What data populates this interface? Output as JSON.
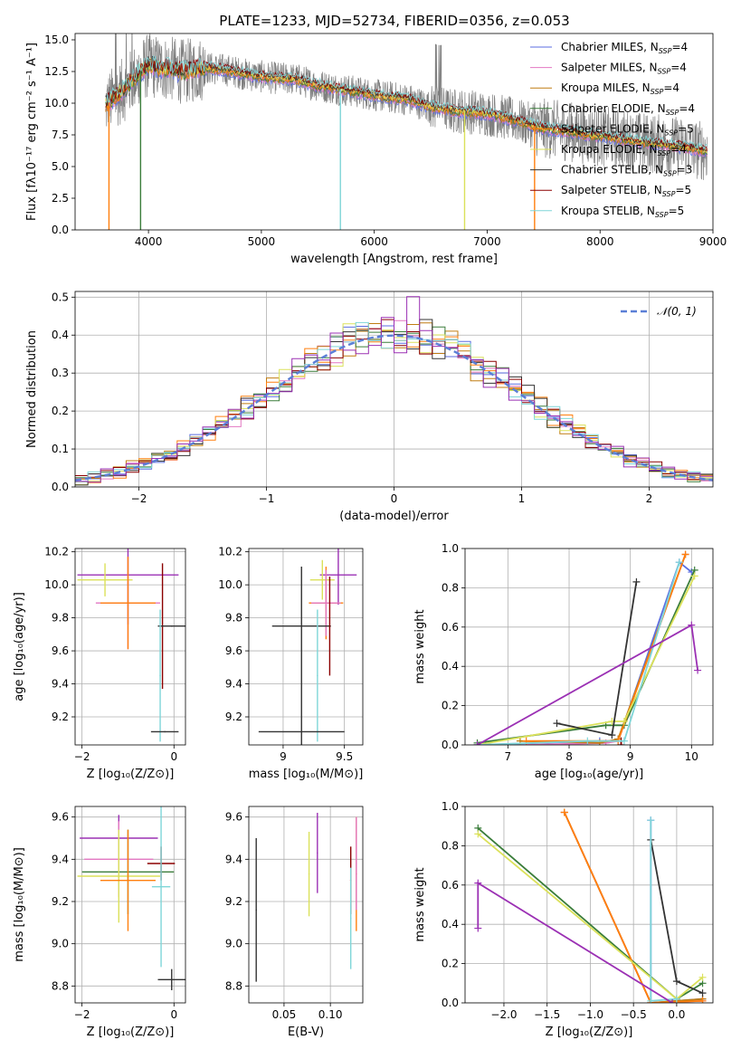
{
  "figure": {
    "title": "PLATE=1233, MJD=52734, FIBERID=0356, z=0.053",
    "series_colors": [
      "#5b6ee1",
      "#e377c2",
      "#c07d12",
      "#3a7d3a",
      "#ff7f0e",
      "#dbe15a",
      "#333333",
      "#8b0000",
      "#7fd6d8"
    ],
    "mean_color": "#7f7f7f",
    "gaussian_color": "#5b7fd6",
    "purple": "#9b30b4"
  },
  "chart_data": [
    {
      "id": "spectrum",
      "type": "line",
      "xlabel": "wavelength [Angstrom, rest frame]",
      "ylabel": "Flux [fλ10⁻¹⁷ erg cm⁻² s⁻¹ A⁻¹]",
      "xlim": [
        3350,
        9000
      ],
      "ylim": [
        0,
        15.5
      ],
      "xticks": [
        4000,
        5000,
        6000,
        7000,
        8000,
        9000
      ],
      "yticks": [
        0.0,
        2.5,
        5.0,
        7.5,
        10.0,
        12.5,
        15.0
      ],
      "grid": false,
      "legend_position": "top-right",
      "series": [
        {
          "name": "Chabrier MILES, N",
          "sub": "SSP",
          "suffix": "=4"
        },
        {
          "name": "Salpeter MILES, N",
          "sub": "SSP",
          "suffix": "=4"
        },
        {
          "name": "Kroupa MILES, N",
          "sub": "SSP",
          "suffix": "=4"
        },
        {
          "name": "Chabrier ELODIE, N",
          "sub": "SSP",
          "suffix": "=4"
        },
        {
          "name": "Salpeter ELODIE, N",
          "sub": "SSP",
          "suffix": "=5"
        },
        {
          "name": "Kroupa ELODIE, N",
          "sub": "SSP",
          "suffix": "=4"
        },
        {
          "name": "Chabrier STELIB, N",
          "sub": "SSP",
          "suffix": "=3"
        },
        {
          "name": "Salpeter STELIB, N",
          "sub": "SSP",
          "suffix": "=5"
        },
        {
          "name": "Kroupa STELIB, N",
          "sub": "SSP",
          "suffix": "=5"
        }
      ],
      "continuum_x": [
        3620,
        3700,
        3800,
        3900,
        4000,
        4100,
        4200,
        4300,
        4400,
        4500,
        4700,
        4900,
        5100,
        5300,
        5500,
        5700,
        5900,
        6100,
        6300,
        6500,
        6700,
        6900,
        7100,
        7300,
        7500,
        7700,
        7900,
        8100,
        8300,
        8500,
        8700,
        8950
      ],
      "continuum_y": [
        9.8,
        10.5,
        11.2,
        12.3,
        13.0,
        12.8,
        12.7,
        12.5,
        12.6,
        12.8,
        12.6,
        12.2,
        12.0,
        11.9,
        11.4,
        11.1,
        10.8,
        10.5,
        10.3,
        9.7,
        9.4,
        9.3,
        9.0,
        8.5,
        8.0,
        7.8,
        7.5,
        7.3,
        7.0,
        6.8,
        6.6,
        6.2
      ],
      "dips": [
        {
          "x": 3650,
          "series": 4
        },
        {
          "x": 3930,
          "series": 3
        },
        {
          "x": 5700,
          "series": 8
        },
        {
          "x": 6800,
          "series": 5
        },
        {
          "x": 7420,
          "series": 4
        }
      ]
    },
    {
      "id": "residual_hist",
      "type": "line",
      "xlabel": "(data-model)/error",
      "ylabel": "Normed distribution",
      "xlim": [
        -2.5,
        2.5
      ],
      "ylim": [
        0,
        0.515
      ],
      "xticks": [
        -2,
        -1,
        0,
        1,
        2
      ],
      "xtick_labels": [
        "−2",
        "−1",
        "0",
        "1",
        "2"
      ],
      "yticks": [
        0.0,
        0.1,
        0.2,
        0.3,
        0.4,
        0.5
      ],
      "grid": true,
      "legend_position": "top-right",
      "legend": {
        "label": "𝒩(0, 1)"
      },
      "bin_start": -2.5,
      "bin_width": 0.1
    },
    {
      "id": "age_vs_Z",
      "type": "scatter",
      "xlabel": "Z [log₁₀(Z/Z⊙)]",
      "ylabel": "age  [log₁₀(age/yr)]",
      "xlim": [
        -2.15,
        0.25
      ],
      "ylim": [
        9.03,
        10.22
      ],
      "xticks": [
        -2,
        0
      ],
      "xtick_labels": [
        "−2",
        "0"
      ],
      "yticks": [
        9.2,
        9.4,
        9.6,
        9.8,
        10.0,
        10.2
      ],
      "grid": true,
      "points": [
        {
          "x": -1.0,
          "y": 10.06,
          "xerr": 1.1,
          "yerr": 0.3,
          "c": 9
        },
        {
          "x": -1.5,
          "y": 10.03,
          "xerr": 0.6,
          "yerr": 0.1,
          "c": 5
        },
        {
          "x": -1.0,
          "y": 9.89,
          "xerr": 0.7,
          "yerr": 0.28,
          "c": 1
        },
        {
          "x": -1.0,
          "y": 9.89,
          "xerr": 0.6,
          "yerr": 0.28,
          "c": 4
        },
        {
          "x": -0.25,
          "y": 9.75,
          "xerr": 0.0,
          "yerr": 0.38,
          "c": 7
        },
        {
          "x": -0.05,
          "y": 9.75,
          "xerr": 0.3,
          "yerr": 0.0,
          "c": 6
        },
        {
          "x": -0.3,
          "y": 9.45,
          "xerr": 0.0,
          "yerr": 0.4,
          "c": 8
        },
        {
          "x": -0.2,
          "y": 9.11,
          "xerr": 0.3,
          "yerr": 0.0,
          "c": 6
        }
      ]
    },
    {
      "id": "age_vs_mass",
      "type": "scatter",
      "xlabel": "mass [log₁₀(M/M⊙)]",
      "ylabel": "",
      "xlim": [
        8.72,
        9.65
      ],
      "ylim": [
        9.03,
        10.22
      ],
      "xticks": [
        9.0,
        9.5
      ],
      "yticks": [
        9.2,
        9.4,
        9.6,
        9.8,
        10.0,
        10.2
      ],
      "grid": true,
      "points": [
        {
          "x": 9.45,
          "y": 10.06,
          "xerr": 0.15,
          "yerr": 0.18,
          "c": 9
        },
        {
          "x": 9.32,
          "y": 10.03,
          "xerr": 0.1,
          "yerr": 0.12,
          "c": 5
        },
        {
          "x": 9.35,
          "y": 9.89,
          "xerr": 0.14,
          "yerr": 0.22,
          "c": 4
        },
        {
          "x": 9.35,
          "y": 9.89,
          "xerr": 0.12,
          "yerr": 0.2,
          "c": 1
        },
        {
          "x": 9.15,
          "y": 9.75,
          "xerr": 0.24,
          "yerr": 0.0,
          "c": 6
        },
        {
          "x": 9.38,
          "y": 9.75,
          "xerr": 0.0,
          "yerr": 0.3,
          "c": 7
        },
        {
          "x": 9.28,
          "y": 9.45,
          "xerr": 0.0,
          "yerr": 0.4,
          "c": 8
        },
        {
          "x": 9.15,
          "y": 9.11,
          "xerr": 0.35,
          "yerr": 1.0,
          "c": 6
        }
      ]
    },
    {
      "id": "mw_vs_age",
      "type": "line",
      "xlabel": "age  [log₁₀(age/yr)]",
      "ylabel": "mass weight",
      "xlim": [
        6.3,
        10.35
      ],
      "ylim": [
        0,
        1.0
      ],
      "xticks": [
        7,
        8,
        9,
        10
      ],
      "yticks": [
        0.0,
        0.2,
        0.4,
        0.6,
        0.8,
        1.0
      ],
      "grid": true,
      "series": [
        {
          "c": 0,
          "x": [
            6.5,
            8.5,
            8.8,
            9.8,
            10.0
          ],
          "y": [
            0.0,
            0.02,
            0.02,
            0.93,
            0.88
          ]
        },
        {
          "c": 1,
          "x": [
            7.3,
            8.6,
            8.8,
            9.9
          ],
          "y": [
            0.0,
            0.01,
            0.02,
            0.97
          ]
        },
        {
          "c": 2,
          "x": [
            7.2,
            8.5,
            8.8,
            9.9
          ],
          "y": [
            0.02,
            0.01,
            0.03,
            0.97
          ]
        },
        {
          "c": 3,
          "x": [
            6.5,
            8.6,
            8.9,
            10.05
          ],
          "y": [
            0.01,
            0.1,
            0.1,
            0.89
          ]
        },
        {
          "c": 4,
          "x": [
            7.3,
            8.8,
            9.9
          ],
          "y": [
            0.02,
            0.02,
            0.97
          ]
        },
        {
          "c": 5,
          "x": [
            6.5,
            8.7,
            8.9,
            10.05
          ],
          "y": [
            0.0,
            0.12,
            0.12,
            0.86
          ]
        },
        {
          "c": 6,
          "x": [
            7.8,
            8.7,
            9.1
          ],
          "y": [
            0.11,
            0.05,
            0.83
          ]
        },
        {
          "c": 7,
          "x": [
            8.85,
            8.85
          ],
          "y": [
            0.02,
            0.0
          ]
        },
        {
          "c": 8,
          "x": [
            6.5,
            8.3,
            8.9,
            9.8
          ],
          "y": [
            0.0,
            0.02,
            0.02,
            0.93
          ]
        },
        {
          "c": 9,
          "x": [
            6.5,
            10.0,
            10.1
          ],
          "y": [
            0.0,
            0.61,
            0.38
          ]
        }
      ]
    },
    {
      "id": "mass_vs_Z",
      "type": "scatter",
      "xlabel": "Z [log₁₀(Z/Z⊙)]",
      "ylabel": "mass [log₁₀(M/M⊙)]",
      "xlim": [
        -2.15,
        0.25
      ],
      "ylim": [
        8.72,
        9.65
      ],
      "xticks": [
        -2,
        0
      ],
      "xtick_labels": [
        "−2",
        "0"
      ],
      "yticks": [
        8.8,
        9.0,
        9.2,
        9.4,
        9.6
      ],
      "grid": true,
      "points": [
        {
          "x": -1.2,
          "y": 9.5,
          "xerr": 0.85,
          "yerr": 0.11,
          "c": 9
        },
        {
          "x": -1.2,
          "y": 9.4,
          "xerr": 0.75,
          "yerr": 0.18,
          "c": 1
        },
        {
          "x": -1.0,
          "y": 9.34,
          "xerr": 1.0,
          "yerr": 0.2,
          "c": 3
        },
        {
          "x": -1.2,
          "y": 9.32,
          "xerr": 0.9,
          "yerr": 0.22,
          "c": 5
        },
        {
          "x": -1.0,
          "y": 9.3,
          "xerr": 0.6,
          "yerr": 0.24,
          "c": 4
        },
        {
          "x": -0.28,
          "y": 9.38,
          "xerr": 0.3,
          "yerr": 0.08,
          "c": 7
        },
        {
          "x": -0.28,
          "y": 9.27,
          "xerr": 0.2,
          "yerr": 0.38,
          "c": 8
        },
        {
          "x": -0.05,
          "y": 8.83,
          "xerr": 0.3,
          "yerr": 0.05,
          "c": 6
        }
      ]
    },
    {
      "id": "mass_vs_ebv",
      "type": "scatter",
      "xlabel": "E(B-V)",
      "ylabel": "",
      "xlim": [
        0.012,
        0.135
      ],
      "ylim": [
        8.72,
        9.65
      ],
      "xticks": [
        0.05,
        0.1
      ],
      "xtick_labels": [
        "0.05",
        "0.10"
      ],
      "yticks": [
        8.8,
        9.0,
        9.2,
        9.4,
        9.6
      ],
      "grid": true,
      "points": [
        {
          "x": 0.02,
          "y": 9.16,
          "yerr": 0.34,
          "c": 6
        },
        {
          "x": 0.077,
          "y": 9.33,
          "yerr": 0.2,
          "c": 5
        },
        {
          "x": 0.086,
          "y": 9.43,
          "yerr": 0.19,
          "c": 9
        },
        {
          "x": 0.122,
          "y": 9.3,
          "yerr": 0.16,
          "c": 7
        },
        {
          "x": 0.122,
          "y": 9.12,
          "yerr": 0.24,
          "c": 8
        },
        {
          "x": 0.128,
          "y": 9.33,
          "yerr": 0.27,
          "c": 4
        },
        {
          "x": 0.128,
          "y": 9.38,
          "yerr": 0.22,
          "c": 1
        }
      ]
    },
    {
      "id": "mw_vs_Z",
      "type": "line",
      "xlabel": "Z [log₁₀(Z/Z⊙)]",
      "ylabel": "mass weight",
      "xlim": [
        -2.45,
        0.42
      ],
      "ylim": [
        0,
        1.0
      ],
      "xticks": [
        -2.0,
        -1.5,
        -1.0,
        -0.5,
        0.0
      ],
      "xtick_labels": [
        "−2.0",
        "−1.5",
        "−1.0",
        "−0.5",
        "0.0"
      ],
      "yticks": [
        0.0,
        0.2,
        0.4,
        0.6,
        0.8,
        1.0
      ],
      "grid": true,
      "series": [
        {
          "c": 0,
          "x": [
            -0.3,
            -0.3,
            0.3
          ],
          "y": [
            0.93,
            0.0,
            0.02
          ]
        },
        {
          "c": 1,
          "x": [
            -1.3,
            -0.3,
            0.3
          ],
          "y": [
            0.97,
            0.0,
            0.01
          ]
        },
        {
          "c": 2,
          "x": [
            -1.3,
            -0.3,
            0.3
          ],
          "y": [
            0.97,
            0.0,
            0.02
          ]
        },
        {
          "c": 3,
          "x": [
            -2.3,
            0.0,
            0.3
          ],
          "y": [
            0.89,
            0.02,
            0.1
          ]
        },
        {
          "c": 4,
          "x": [
            -1.3,
            -0.3,
            0.3
          ],
          "y": [
            0.97,
            0.0,
            0.01
          ]
        },
        {
          "c": 5,
          "x": [
            -2.3,
            0.0,
            0.3
          ],
          "y": [
            0.86,
            0.02,
            0.13
          ]
        },
        {
          "c": 6,
          "x": [
            -0.3,
            0.0,
            0.3
          ],
          "y": [
            0.83,
            0.11,
            0.05
          ]
        },
        {
          "c": 8,
          "x": [
            -0.3,
            -0.3,
            0.0
          ],
          "y": [
            0.93,
            0.01,
            0.02
          ]
        },
        {
          "c": 9,
          "x": [
            -2.3,
            -2.3,
            -0.05
          ],
          "y": [
            0.38,
            0.61,
            0.0
          ]
        }
      ]
    }
  ]
}
